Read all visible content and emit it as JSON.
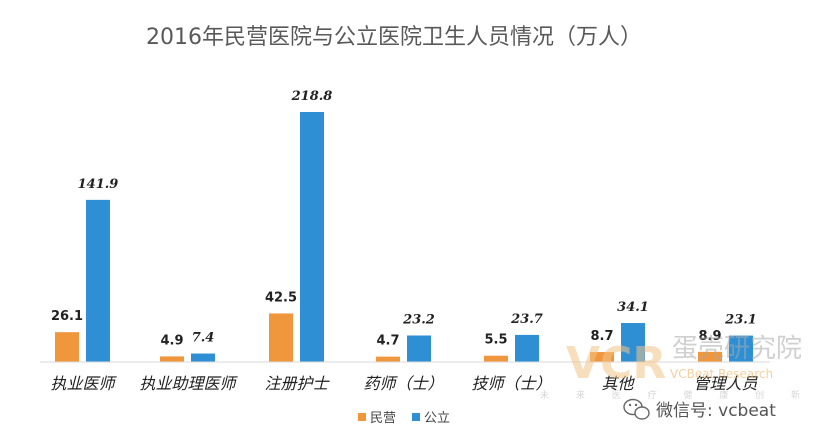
{
  "chart_data": {
    "type": "bar",
    "title": "2016年民营医院与公立医院卫生人员情况（万人）",
    "categories": [
      "执业医师",
      "执业助理医师",
      "注册护士",
      "药师（士）",
      "技师（士）",
      "其他",
      "管理人员"
    ],
    "series": [
      {
        "name": "民营",
        "color": "#f0963c",
        "values": [
          26.1,
          4.9,
          42.5,
          4.7,
          5.5,
          8.7,
          8.9
        ]
      },
      {
        "name": "公立",
        "color": "#2e8fd4",
        "values": [
          141.9,
          7.4,
          218.8,
          23.2,
          23.7,
          34.1,
          23.1
        ]
      }
    ],
    "xlabel": "",
    "ylabel": "",
    "ylim": [
      0,
      218.8
    ],
    "grid": false,
    "legend": "bottom-center"
  },
  "watermark": {
    "logo": "VCR",
    "name": "蛋壳研究院",
    "english": "VCBeat Research",
    "tagline": "未 来 医 疗 健 康 创 新 研 究"
  },
  "wechat": {
    "text": "微信号: vcbeat"
  }
}
